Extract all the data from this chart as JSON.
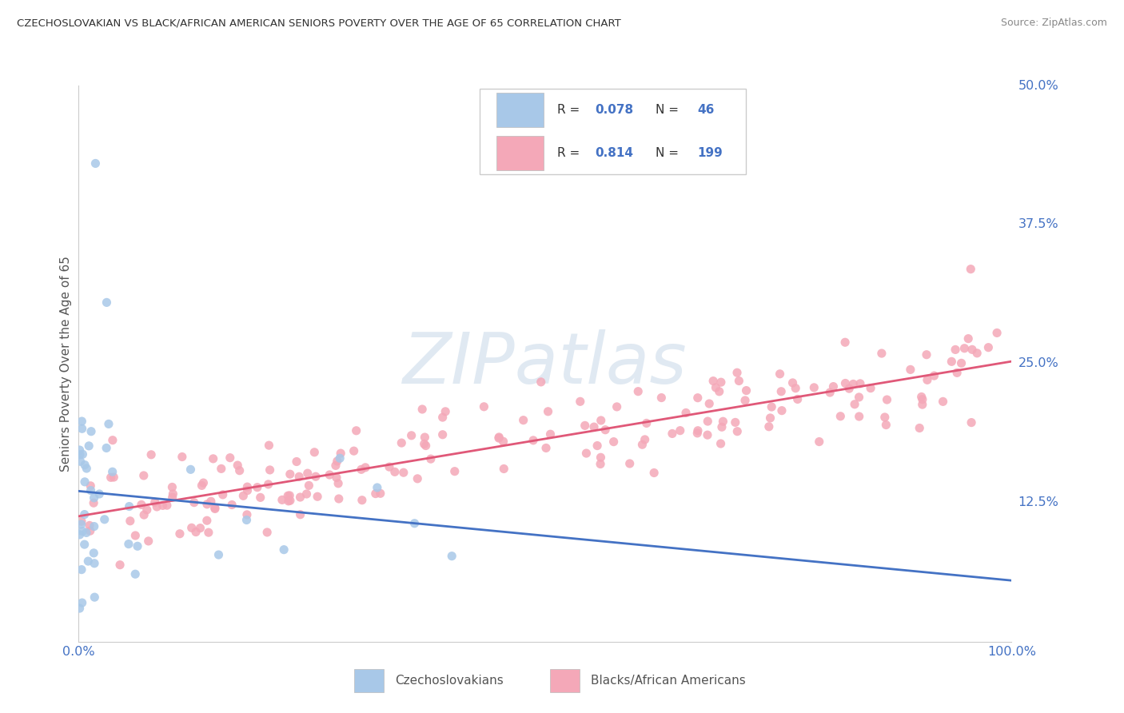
{
  "title": "CZECHOSLOVAKIAN VS BLACK/AFRICAN AMERICAN SENIORS POVERTY OVER THE AGE OF 65 CORRELATION CHART",
  "source": "Source: ZipAtlas.com",
  "ylabel": "Seniors Poverty Over the Age of 65",
  "xlim": [
    0,
    1.0
  ],
  "ylim": [
    0,
    0.5
  ],
  "yticks": [
    0.125,
    0.25,
    0.375,
    0.5
  ],
  "ytick_labels": [
    "12.5%",
    "25.0%",
    "37.5%",
    "50.0%"
  ],
  "legend_labels": [
    "Czechoslovakians",
    "Blacks/African Americans"
  ],
  "blue_color": "#a8c8e8",
  "pink_color": "#f4a8b8",
  "blue_line_color": "#4472c4",
  "pink_line_color": "#e05878",
  "R_czech": 0.078,
  "N_czech": 46,
  "R_black": 0.814,
  "N_black": 199,
  "watermark_text": "ZIPatlas",
  "background_color": "#ffffff",
  "grid_color": "#d0d0d0",
  "title_color": "#333333",
  "axis_label_color": "#4472c4",
  "tick_label_color": "#4472c4"
}
